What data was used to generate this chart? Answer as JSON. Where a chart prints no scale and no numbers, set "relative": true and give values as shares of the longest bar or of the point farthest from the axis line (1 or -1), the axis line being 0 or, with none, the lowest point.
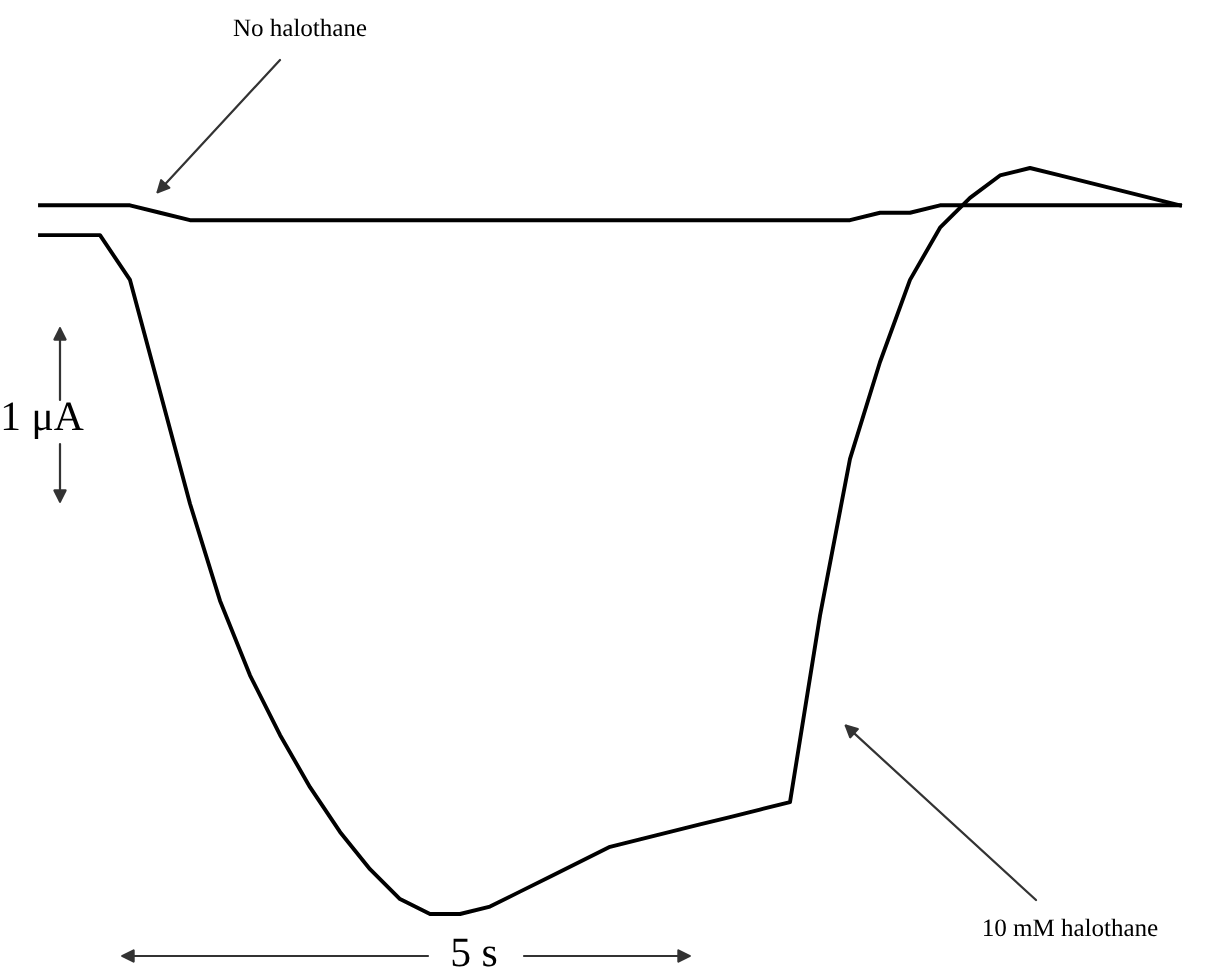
{
  "chart_data": {
    "type": "line",
    "relative": true,
    "categories": [
      null,
      null,
      null,
      null,
      null,
      null,
      null,
      null,
      null,
      null,
      null,
      null,
      null,
      null,
      null,
      null,
      null,
      null,
      null,
      null,
      null,
      null,
      null,
      null,
      null,
      null,
      null,
      null,
      null,
      null,
      null,
      null,
      null,
      null,
      null,
      null,
      null,
      null,
      null
    ],
    "series": [
      {
        "color": "#000000",
        "values": [
          0.95,
          0.95,
          0.95,
          0.95,
          0.94,
          0.93,
          0.93,
          0.93,
          0.93,
          0.93,
          0.93,
          0.93,
          0.93,
          0.93,
          0.93,
          0.93,
          0.93,
          0.93,
          0.93,
          0.93,
          0.93,
          0.93,
          0.93,
          0.93,
          0.93,
          0.93,
          0.93,
          0.93,
          0.94,
          0.94,
          0.95,
          0.95,
          0.95,
          0.95,
          0.95,
          0.95,
          0.95,
          0.95,
          0.95
        ]
      },
      {
        "color": "#000000",
        "values": [
          0.91,
          0.91,
          0.91,
          0.85,
          0.7,
          0.55,
          0.42,
          0.32,
          0.24,
          0.17,
          0.11,
          0.06,
          0.02,
          0,
          0,
          0.01,
          0.03,
          0.05,
          0.07,
          0.09,
          0.1,
          0.11,
          0.12,
          0.13,
          0.14,
          0.15,
          0.4,
          0.61,
          0.74,
          0.85,
          0.92,
          0.96,
          0.99,
          1,
          0.99,
          0.98,
          0.97,
          0.96,
          0.95
        ]
      }
    ],
    "annotations": [
      "No halothane",
      "1 μA",
      "5 s",
      "10 mM halothane"
    ],
    "marker": "none",
    "line_style": "solid",
    "legend": false
  }
}
